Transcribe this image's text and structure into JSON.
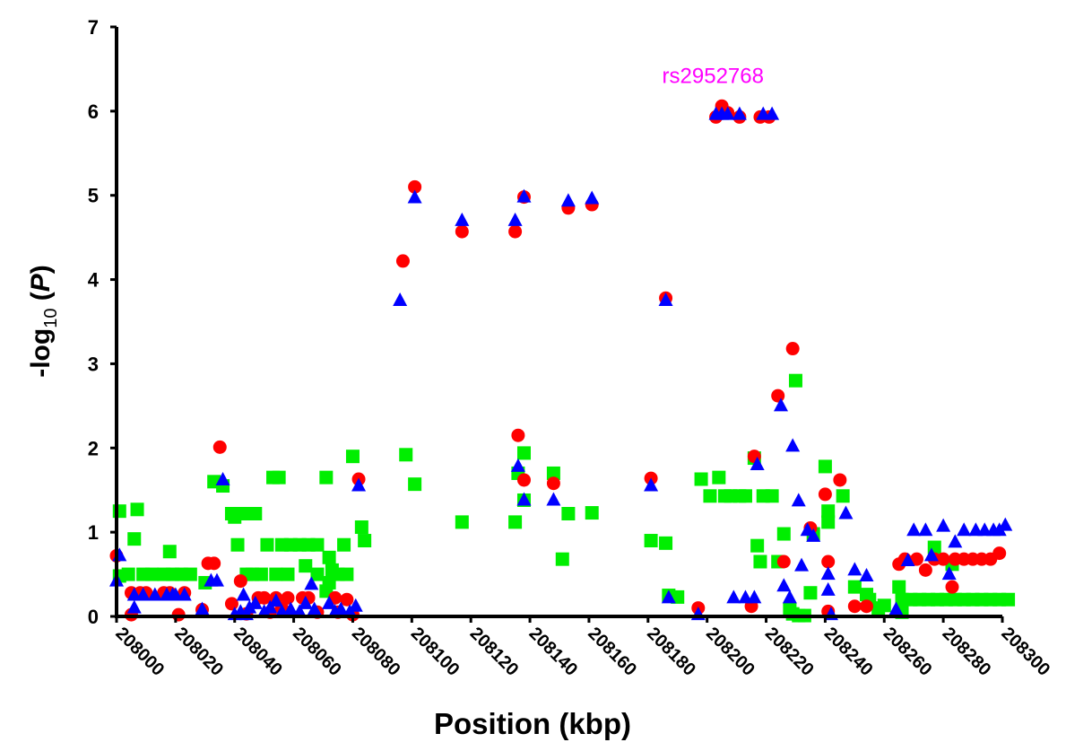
{
  "chart_data": {
    "type": "scatter",
    "xlabel": "Position (kbp)",
    "ylabel_prefix": "-log",
    "ylabel_sub": "10",
    "ylabel_open": " (",
    "ylabel_var": "P",
    "ylabel_close": ")",
    "xlim": [
      208000,
      208300
    ],
    "ylim": [
      0,
      7
    ],
    "xticks": [
      208000,
      208020,
      208040,
      208060,
      208080,
      208100,
      208120,
      208140,
      208160,
      208180,
      208200,
      208220,
      208240,
      208260,
      208280,
      208300
    ],
    "yticks": [
      0,
      1,
      2,
      3,
      4,
      5,
      6,
      7
    ],
    "grid": false,
    "annotation": {
      "text": "rs2952768",
      "x": 208202,
      "y": 6.42,
      "color": "#ff00ff"
    },
    "series": [
      {
        "marker": "circle",
        "color": "#ff0000",
        "points": [
          [
            208000,
            0.72
          ],
          [
            208005,
            0.28
          ],
          [
            208005,
            0.02
          ],
          [
            208008,
            0.28
          ],
          [
            208010,
            0.28
          ],
          [
            208016,
            0.28
          ],
          [
            208018,
            0.28
          ],
          [
            208021,
            0.02
          ],
          [
            208023,
            0.28
          ],
          [
            208029,
            0.08
          ],
          [
            208031,
            0.63
          ],
          [
            208033,
            0.63
          ],
          [
            208035,
            2.01
          ],
          [
            208039,
            0.15
          ],
          [
            208042,
            0.42
          ],
          [
            208044,
            0.03
          ],
          [
            208048,
            0.22
          ],
          [
            208050,
            0.22
          ],
          [
            208052,
            0.05
          ],
          [
            208054,
            0.22
          ],
          [
            208056,
            0.1
          ],
          [
            208058,
            0.22
          ],
          [
            208063,
            0.22
          ],
          [
            208065,
            0.22
          ],
          [
            208068,
            0.05
          ],
          [
            208074,
            0.22
          ],
          [
            208075,
            0.05
          ],
          [
            208078,
            0.2
          ],
          [
            208080,
            0.02
          ],
          [
            208082,
            1.63
          ],
          [
            208097,
            4.22
          ],
          [
            208101,
            5.1
          ],
          [
            208117,
            4.57
          ],
          [
            208135,
            4.57
          ],
          [
            208136,
            2.15
          ],
          [
            208138,
            4.98
          ],
          [
            208138,
            1.62
          ],
          [
            208148,
            1.58
          ],
          [
            208153,
            4.85
          ],
          [
            208161,
            4.89
          ],
          [
            208181,
            1.64
          ],
          [
            208186,
            3.78
          ],
          [
            208197,
            0.1
          ],
          [
            208203,
            5.93
          ],
          [
            208205,
            6.06
          ],
          [
            208207,
            5.98
          ],
          [
            208211,
            5.93
          ],
          [
            208215,
            0.12
          ],
          [
            208216,
            1.9
          ],
          [
            208218,
            5.93
          ],
          [
            208221,
            5.93
          ],
          [
            208224,
            2.62
          ],
          [
            208226,
            0.65
          ],
          [
            208229,
            3.18
          ],
          [
            208235,
            1.05
          ],
          [
            208240,
            1.45
          ],
          [
            208241,
            0.65
          ],
          [
            208241,
            0.06
          ],
          [
            208245,
            1.62
          ],
          [
            208250,
            0.12
          ],
          [
            208254,
            0.12
          ],
          [
            208265,
            0.62
          ],
          [
            208267,
            0.68
          ],
          [
            208271,
            0.68
          ],
          [
            208274,
            0.55
          ],
          [
            208277,
            0.68
          ],
          [
            208280,
            0.68
          ],
          [
            208283,
            0.35
          ],
          [
            208284,
            0.68
          ],
          [
            208287,
            0.68
          ],
          [
            208290,
            0.68
          ],
          [
            208293,
            0.68
          ],
          [
            208296,
            0.68
          ],
          [
            208299,
            0.75
          ]
        ]
      },
      {
        "marker": "triangle",
        "color": "#0000ff",
        "points": [
          [
            208000,
            0.42
          ],
          [
            208001,
            0.72
          ],
          [
            208006,
            0.1
          ],
          [
            208006,
            0.25
          ],
          [
            208009,
            0.25
          ],
          [
            208013,
            0.25
          ],
          [
            208017,
            0.25
          ],
          [
            208019,
            0.25
          ],
          [
            208020,
            0.25
          ],
          [
            208023,
            0.25
          ],
          [
            208029,
            0.08
          ],
          [
            208032,
            0.42
          ],
          [
            208034,
            0.42
          ],
          [
            208036,
            1.62
          ],
          [
            208040,
            0.02
          ],
          [
            208042,
            0.05
          ],
          [
            208043,
            0.25
          ],
          [
            208044,
            0.02
          ],
          [
            208045,
            0.1
          ],
          [
            208047,
            0.15
          ],
          [
            208050,
            0.05
          ],
          [
            208052,
            0.1
          ],
          [
            208054,
            0.18
          ],
          [
            208056,
            0.05
          ],
          [
            208059,
            0.08
          ],
          [
            208062,
            0.05
          ],
          [
            208064,
            0.15
          ],
          [
            208066,
            0.38
          ],
          [
            208067,
            0.08
          ],
          [
            208072,
            0.15
          ],
          [
            208074,
            0.05
          ],
          [
            208076,
            0.08
          ],
          [
            208079,
            0.05
          ],
          [
            208081,
            0.12
          ],
          [
            208082,
            1.55
          ],
          [
            208096,
            3.75
          ],
          [
            208101,
            4.97
          ],
          [
            208117,
            4.7
          ],
          [
            208135,
            4.7
          ],
          [
            208136,
            1.78
          ],
          [
            208138,
            4.98
          ],
          [
            208138,
            1.38
          ],
          [
            208148,
            1.38
          ],
          [
            208153,
            4.93
          ],
          [
            208161,
            4.96
          ],
          [
            208181,
            1.55
          ],
          [
            208186,
            3.75
          ],
          [
            208187,
            0.22
          ],
          [
            208197,
            0.02
          ],
          [
            208203,
            5.96
          ],
          [
            208205,
            5.96
          ],
          [
            208207,
            5.96
          ],
          [
            208209,
            0.22
          ],
          [
            208211,
            5.96
          ],
          [
            208213,
            0.22
          ],
          [
            208216,
            0.22
          ],
          [
            208217,
            1.8
          ],
          [
            208219,
            5.96
          ],
          [
            208222,
            5.96
          ],
          [
            208225,
            2.5
          ],
          [
            208226,
            0.36
          ],
          [
            208228,
            0.22
          ],
          [
            208229,
            2.02
          ],
          [
            208231,
            1.37
          ],
          [
            208232,
            0.6
          ],
          [
            208234,
            1.02
          ],
          [
            208236,
            0.95
          ],
          [
            208241,
            0.5
          ],
          [
            208241,
            0.31
          ],
          [
            208242,
            0.02
          ],
          [
            208247,
            1.22
          ],
          [
            208250,
            0.55
          ],
          [
            208254,
            0.48
          ],
          [
            208264,
            0.08
          ],
          [
            208268,
            0.66
          ],
          [
            208270,
            1.02
          ],
          [
            208274,
            1.02
          ],
          [
            208276,
            0.72
          ],
          [
            208280,
            1.07
          ],
          [
            208282,
            0.5
          ],
          [
            208284,
            0.88
          ],
          [
            208287,
            1.02
          ],
          [
            208291,
            1.02
          ],
          [
            208294,
            1.02
          ],
          [
            208297,
            1.02
          ],
          [
            208299,
            1.02
          ],
          [
            208301,
            1.08
          ]
        ]
      },
      {
        "marker": "square",
        "color": "#00ee00",
        "points": [
          [
            208001,
            1.25
          ],
          [
            208001,
            0.48
          ],
          [
            208007,
            1.27
          ],
          [
            208006,
            0.92
          ],
          [
            208004,
            0.5
          ],
          [
            208009,
            0.5
          ],
          [
            208012,
            0.5
          ],
          [
            208016,
            0.5
          ],
          [
            208019,
            0.5
          ],
          [
            208022,
            0.5
          ],
          [
            208025,
            0.5
          ],
          [
            208018,
            0.77
          ],
          [
            208030,
            0.4
          ],
          [
            208033,
            1.6
          ],
          [
            208036,
            1.55
          ],
          [
            208039,
            1.22
          ],
          [
            208040,
            1.18
          ],
          [
            208042,
            1.22
          ],
          [
            208044,
            1.22
          ],
          [
            208047,
            1.22
          ],
          [
            208041,
            0.85
          ],
          [
            208044,
            0.5
          ],
          [
            208046,
            0.5
          ],
          [
            208049,
            0.5
          ],
          [
            208051,
            0.85
          ],
          [
            208053,
            1.65
          ],
          [
            208055,
            1.65
          ],
          [
            208054,
            0.5
          ],
          [
            208056,
            0.85
          ],
          [
            208058,
            0.5
          ],
          [
            208059,
            0.85
          ],
          [
            208062,
            0.85
          ],
          [
            208065,
            0.85
          ],
          [
            208068,
            0.85
          ],
          [
            208064,
            0.6
          ],
          [
            208068,
            0.5
          ],
          [
            208071,
            1.65
          ],
          [
            208072,
            0.7
          ],
          [
            208073,
            0.55
          ],
          [
            208072,
            0.4
          ],
          [
            208071,
            0.3
          ],
          [
            208075,
            0.5
          ],
          [
            208078,
            0.5
          ],
          [
            208077,
            0.85
          ],
          [
            208080,
            1.9
          ],
          [
            208083,
            1.06
          ],
          [
            208084,
            0.9
          ],
          [
            208098,
            1.92
          ],
          [
            208101,
            1.57
          ],
          [
            208117,
            1.12
          ],
          [
            208135,
            1.12
          ],
          [
            208136,
            1.7
          ],
          [
            208138,
            1.94
          ],
          [
            208138,
            1.38
          ],
          [
            208148,
            1.7
          ],
          [
            208151,
            0.68
          ],
          [
            208153,
            1.22
          ],
          [
            208161,
            1.23
          ],
          [
            208181,
            0.9
          ],
          [
            208186,
            0.87
          ],
          [
            208187,
            0.25
          ],
          [
            208190,
            0.23
          ],
          [
            208198,
            1.63
          ],
          [
            208201,
            1.43
          ],
          [
            208204,
            1.65
          ],
          [
            208206,
            1.43
          ],
          [
            208208,
            1.43
          ],
          [
            208211,
            1.43
          ],
          [
            208213,
            1.43
          ],
          [
            208216,
            1.88
          ],
          [
            208217,
            0.84
          ],
          [
            208218,
            0.65
          ],
          [
            208219,
            1.43
          ],
          [
            208222,
            1.43
          ],
          [
            208224,
            0.65
          ],
          [
            208226,
            0.98
          ],
          [
            208228,
            0.08
          ],
          [
            208229,
            0.03
          ],
          [
            208230,
            2.8
          ],
          [
            208231,
            0.01
          ],
          [
            208233,
            0.01
          ],
          [
            208235,
            0.28
          ],
          [
            208236,
            0.98
          ],
          [
            208240,
            1.78
          ],
          [
            208241,
            1.25
          ],
          [
            208241,
            1.12
          ],
          [
            208246,
            1.43
          ],
          [
            208250,
            0.35
          ],
          [
            208254,
            0.26
          ],
          [
            208255,
            0.2
          ],
          [
            208258,
            0.1
          ],
          [
            208260,
            0.13
          ],
          [
            208265,
            0.35
          ],
          [
            208266,
            0.2
          ],
          [
            208266,
            0.05
          ],
          [
            208269,
            0.2
          ],
          [
            208272,
            0.2
          ],
          [
            208275,
            0.2
          ],
          [
            208277,
            0.82
          ],
          [
            208278,
            0.2
          ],
          [
            208281,
            0.2
          ],
          [
            208283,
            0.62
          ],
          [
            208284,
            0.2
          ],
          [
            208287,
            0.2
          ],
          [
            208290,
            0.2
          ],
          [
            208293,
            0.2
          ],
          [
            208296,
            0.2
          ],
          [
            208299,
            0.2
          ],
          [
            208302,
            0.2
          ]
        ]
      }
    ]
  }
}
